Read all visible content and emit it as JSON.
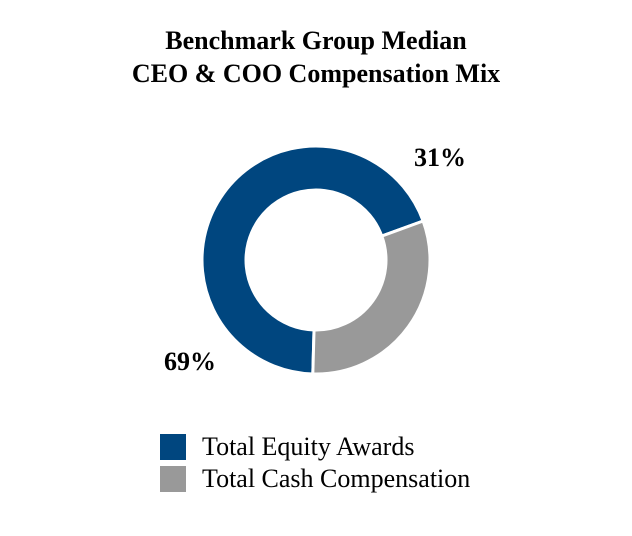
{
  "chart_data": {
    "type": "pie",
    "style": "donut",
    "title_lines": [
      "Benchmark Group Median",
      "CEO & COO Compensation Mix"
    ],
    "slices": [
      {
        "name": "Total Equity Awards",
        "value": 69,
        "label": "69%",
        "color": "#00467f"
      },
      {
        "name": "Total Cash Compensation",
        "value": 31,
        "label": "31%",
        "color": "#999999"
      }
    ],
    "legend_position": "bottom"
  }
}
